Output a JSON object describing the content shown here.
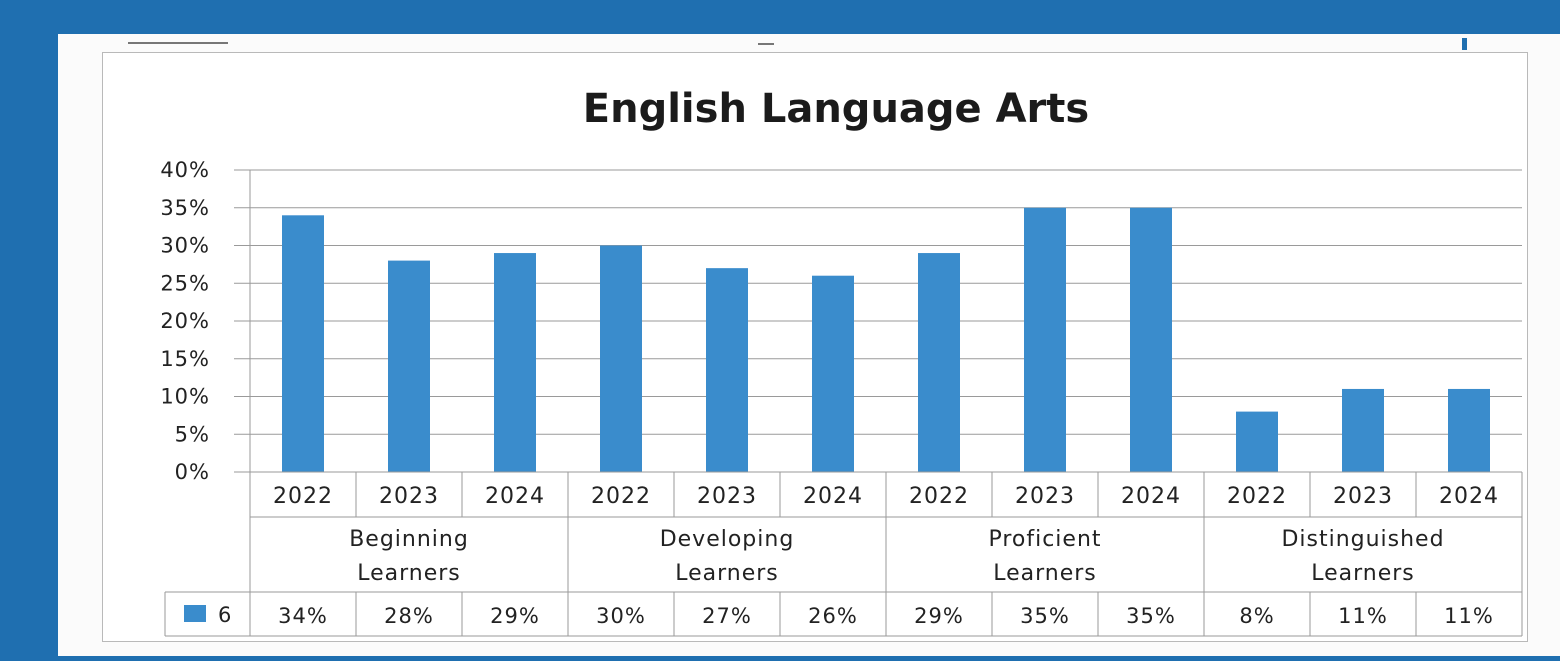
{
  "chart_data": {
    "type": "bar",
    "title": "English Language Arts",
    "ylim": [
      0,
      40
    ],
    "yticks": [
      "0%",
      "5%",
      "10%",
      "15%",
      "20%",
      "25%",
      "30%",
      "35%",
      "40%"
    ],
    "grid": true,
    "bar_color": "#3a8ccc",
    "groups": [
      {
        "label_lines": [
          "Beginning",
          "Learners"
        ],
        "years": [
          "2022",
          "2023",
          "2024"
        ]
      },
      {
        "label_lines": [
          "Developing",
          "Learners"
        ],
        "years": [
          "2022",
          "2023",
          "2024"
        ]
      },
      {
        "label_lines": [
          "Proficient",
          "Learners"
        ],
        "years": [
          "2022",
          "2023",
          "2024"
        ]
      },
      {
        "label_lines": [
          "Distinguished",
          "Learners"
        ],
        "years": [
          "2022",
          "2023",
          "2024"
        ]
      }
    ],
    "series": [
      {
        "name": "6",
        "values": [
          34,
          28,
          29,
          30,
          27,
          26,
          29,
          35,
          35,
          8,
          11,
          11
        ],
        "labels": [
          "34%",
          "28%",
          "29%",
          "30%",
          "27%",
          "26%",
          "29%",
          "35%",
          "35%",
          "8%",
          "11%",
          "11%"
        ]
      }
    ]
  }
}
